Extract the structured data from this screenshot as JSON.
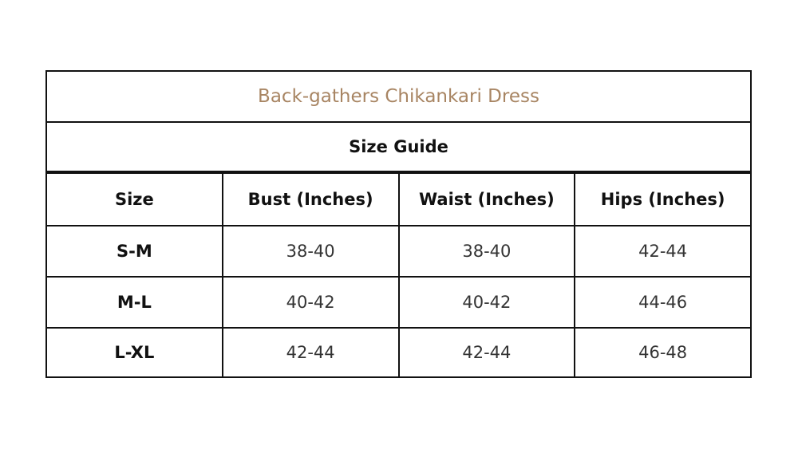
{
  "title": "Back-gathers Chikankari Dress",
  "subtitle": "Size Guide",
  "title_color": "#a88563",
  "headers": [
    "Size",
    "Bust (Inches)",
    "Waist (Inches)",
    "Hips (Inches)"
  ],
  "rows": [
    [
      "S-M",
      "38-40",
      "38-40",
      "42-44"
    ],
    [
      "M-L",
      "40-42",
      "40-42",
      "44-46"
    ],
    [
      "L-XL",
      "42-44",
      "42-44",
      "46-48"
    ]
  ]
}
